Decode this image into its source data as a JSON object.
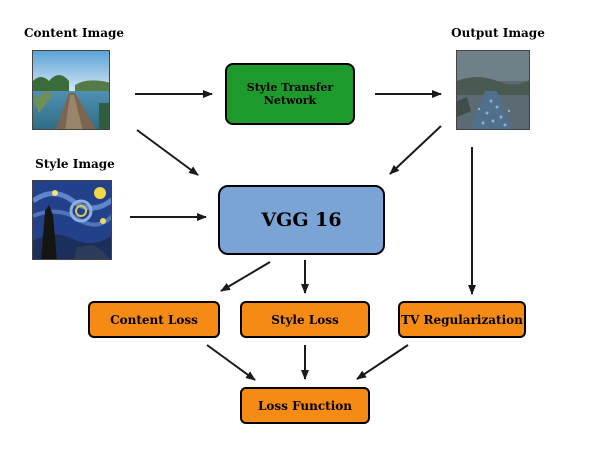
{
  "inputs": {
    "content_label": "Content Image",
    "style_label": "Style Image",
    "output_label": "Output Image"
  },
  "nodes": {
    "style_transfer_network": "Style Transfer\nNetwork",
    "vgg": "VGG 16",
    "content_loss": "Content Loss",
    "style_loss": "Style Loss",
    "tv_regularization": "TV Regularization",
    "loss_function": "Loss Function"
  },
  "colors": {
    "network": "#1e9a2c",
    "vgg": "#7ba4d6",
    "loss": "#f58a14",
    "arrow": "#1a1a1a"
  }
}
